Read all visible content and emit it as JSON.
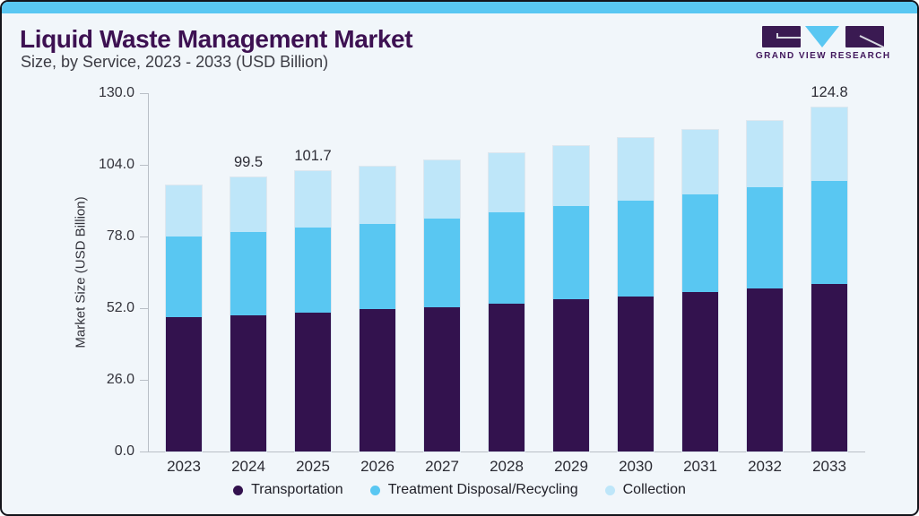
{
  "logo": {
    "text": "GRAND VIEW RESEARCH",
    "mark_purple": "#3A1A52",
    "mark_blue": "#59C7F2"
  },
  "colors": {
    "accent_bar": "#59C7F2",
    "card_bg": "#F1F6FA",
    "title": "#3D1152",
    "axis_line": "#B9BFC6"
  },
  "chart_data": {
    "type": "bar",
    "stacked": true,
    "title": "Liquid Waste Management Market",
    "subtitle": "Size, by Service, 2023 - 2033 (USD Billion)",
    "ylabel": "Market Size (USD Billion)",
    "ylim": [
      0,
      130
    ],
    "yticks": [
      0.0,
      26.0,
      52.0,
      78.0,
      104.0,
      130.0
    ],
    "grid": false,
    "legend_position": "bottom",
    "categories": [
      "2023",
      "2024",
      "2025",
      "2026",
      "2027",
      "2028",
      "2029",
      "2030",
      "2031",
      "2032",
      "2033"
    ],
    "series": [
      {
        "name": "Transportation",
        "color": "#33124E",
        "values": [
          48.7,
          49.5,
          50.4,
          51.6,
          52.4,
          53.6,
          55.1,
          56.3,
          57.8,
          59.3,
          60.9
        ]
      },
      {
        "name": "Treatment Disposal/Recycling",
        "color": "#59C7F2",
        "values": [
          29.2,
          30.0,
          30.7,
          31.1,
          32.2,
          33.1,
          33.8,
          34.8,
          35.6,
          36.5,
          37.4
        ]
      },
      {
        "name": "Collection",
        "color": "#BEE6F9",
        "values": [
          18.7,
          20.0,
          20.6,
          20.5,
          21.0,
          21.4,
          21.8,
          22.5,
          23.2,
          24.1,
          26.5
        ]
      }
    ],
    "totals": [
      96.6,
      99.5,
      101.7,
      103.2,
      105.6,
      108.1,
      110.7,
      113.6,
      116.6,
      119.9,
      124.8
    ],
    "bar_labels": {
      "2024": "99.5",
      "2025": "101.7",
      "2033": "124.8"
    }
  }
}
